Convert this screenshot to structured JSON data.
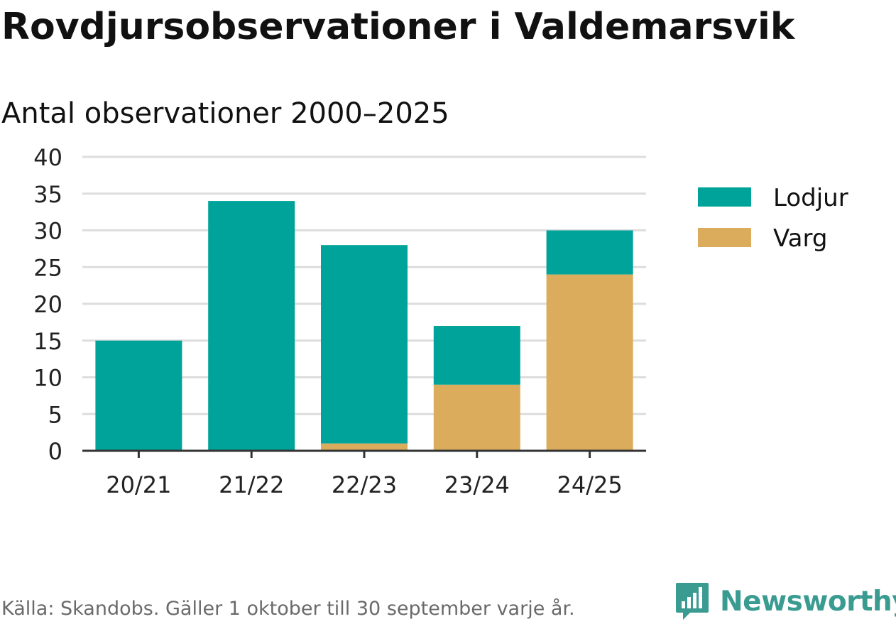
{
  "header": {
    "title": "Rovdjursobservationer i Valdemarsvik",
    "subtitle": "Antal observationer 2000–2025"
  },
  "footer": {
    "source": "Källa: Skandobs. Gäller 1 oktober till 30 september varje år.",
    "brand": "Newsworthy",
    "brand_icon": "bar-chart-speech-bubble-icon"
  },
  "colors": {
    "lodjur": "#00a39a",
    "varg": "#dbac5c",
    "grid": "#dddddd",
    "axis": "#333333",
    "brand": "#3a9b91"
  },
  "chart_data": {
    "type": "bar",
    "stacked": true,
    "title": "Rovdjursobservationer i Valdemarsvik",
    "subtitle": "Antal observationer 2000–2025",
    "categories": [
      "20/21",
      "21/22",
      "22/23",
      "23/24",
      "24/25"
    ],
    "series": [
      {
        "name": "Lodjur",
        "values": [
          15,
          34,
          27,
          8,
          6
        ]
      },
      {
        "name": "Varg",
        "values": [
          0,
          0,
          1,
          9,
          24
        ]
      }
    ],
    "ylim": [
      0,
      40
    ],
    "yticks": [
      0,
      5,
      10,
      15,
      20,
      25,
      30,
      35,
      40
    ],
    "xlabel": "",
    "ylabel": "",
    "grid": true,
    "legend": "right"
  }
}
